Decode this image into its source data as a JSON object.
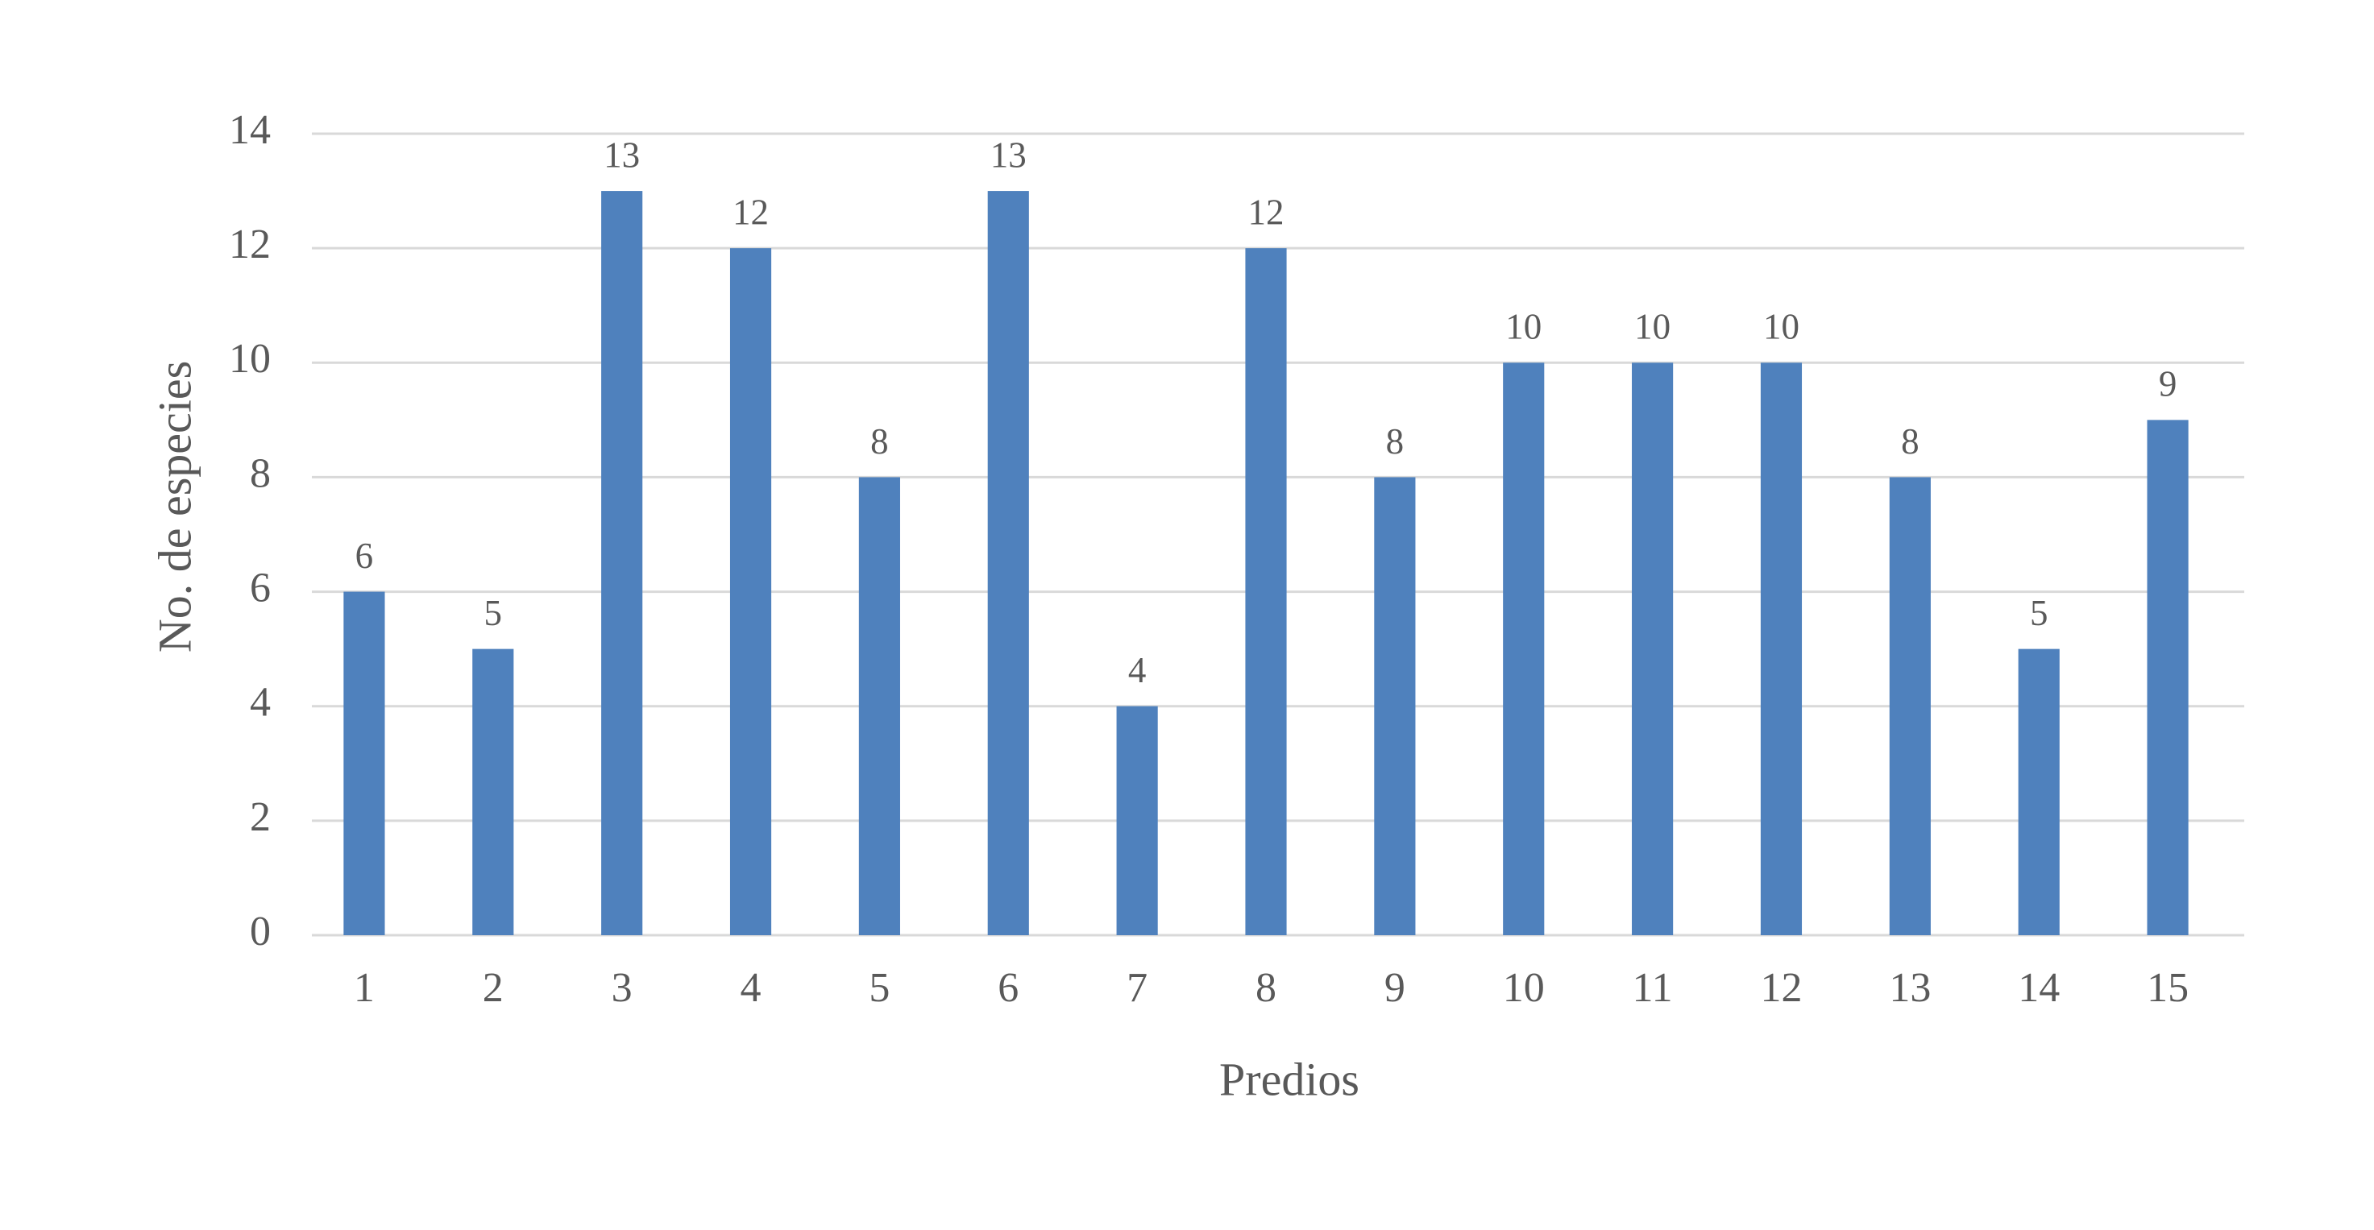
{
  "chart_data": {
    "type": "bar",
    "x_label": "Predios",
    "y_label": "No. de especies",
    "categories": [
      "1",
      "2",
      "3",
      "4",
      "5",
      "6",
      "7",
      "8",
      "9",
      "10",
      "11",
      "12",
      "13",
      "14",
      "15"
    ],
    "values": [
      6,
      5,
      13,
      12,
      8,
      13,
      4,
      12,
      8,
      10,
      10,
      10,
      8,
      5,
      9
    ],
    "color": "#4f81bd",
    "ylim": [
      0,
      14
    ],
    "yticks": [
      0,
      2,
      4,
      6,
      8,
      10,
      12,
      14
    ],
    "grid": true
  }
}
